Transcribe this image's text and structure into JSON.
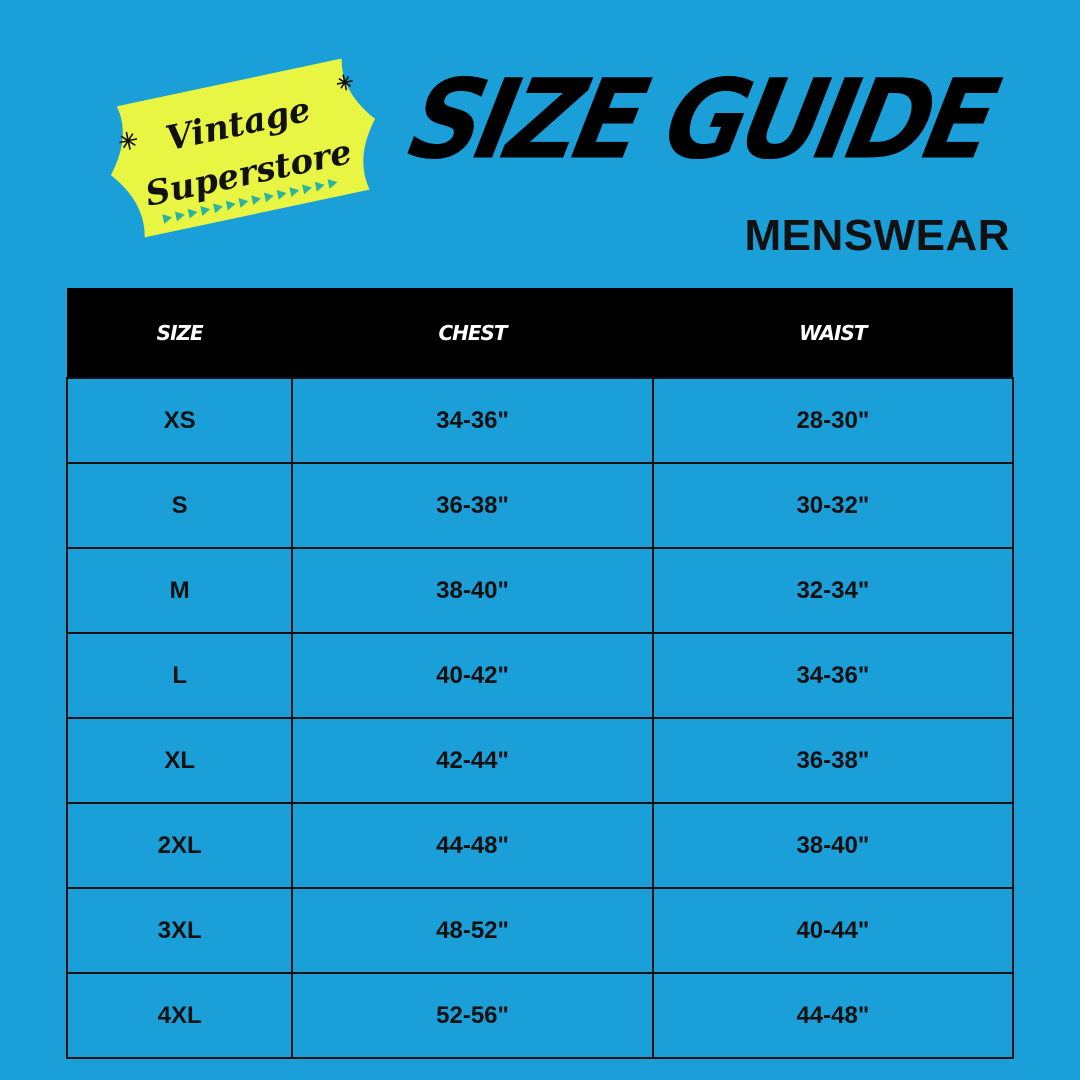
{
  "logo": {
    "line1": "Vintage",
    "line2": "Superstore",
    "bg_color": "#e8f542",
    "accent_color": "#2bb3a0"
  },
  "header": {
    "title": "SIZE GUIDE",
    "subtitle": "MENSWEAR"
  },
  "colors": {
    "background": "#1a9fd8",
    "header_row": "#000000"
  },
  "table": {
    "columns": [
      "SIZE",
      "CHEST",
      "WAIST"
    ],
    "rows": [
      [
        "XS",
        "34-36\"",
        "28-30\""
      ],
      [
        "S",
        "36-38\"",
        "30-32\""
      ],
      [
        "M",
        "38-40\"",
        "32-34\""
      ],
      [
        "L",
        "40-42\"",
        "34-36\""
      ],
      [
        "XL",
        "42-44\"",
        "36-38\""
      ],
      [
        "2XL",
        "44-48\"",
        "38-40\""
      ],
      [
        "3XL",
        "48-52\"",
        "40-44\""
      ],
      [
        "4XL",
        "52-56\"",
        "44-48\""
      ]
    ]
  }
}
